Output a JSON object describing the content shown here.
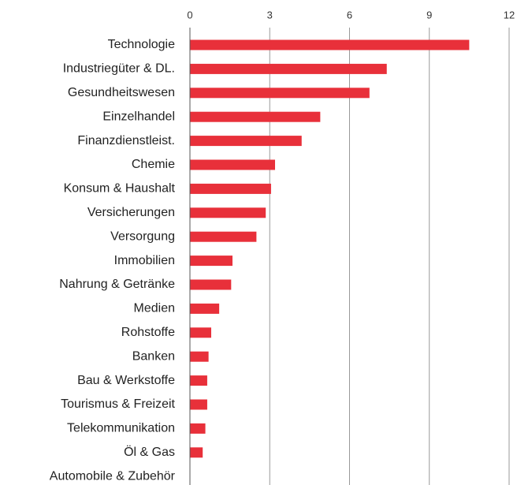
{
  "chart_data": {
    "type": "bar",
    "orientation": "horizontal",
    "categories": [
      "Technologie",
      "Industriegüter & DL.",
      "Gesundheitswesen",
      "Einzelhandel",
      "Finanzdienstleist.",
      "Chemie",
      "Konsum & Haushalt",
      "Versicherungen",
      "Versorgung",
      "Immobilien",
      "Nahrung & Getränke",
      "Medien",
      "Rohstoffe",
      "Banken",
      "Bau & Werkstoffe",
      "Tourismus & Freizeit",
      "Telekommunikation",
      "Öl & Gas",
      "Automobile & Zubehör"
    ],
    "values": [
      10.5,
      7.4,
      6.75,
      4.9,
      4.2,
      3.2,
      3.05,
      2.85,
      2.5,
      1.6,
      1.55,
      1.1,
      0.8,
      0.7,
      0.65,
      0.65,
      0.58,
      0.48,
      0
    ],
    "color": "#e8303a",
    "xlim": [
      0,
      12
    ],
    "xticks": [
      0,
      3,
      6,
      9,
      12
    ],
    "grid": true
  }
}
